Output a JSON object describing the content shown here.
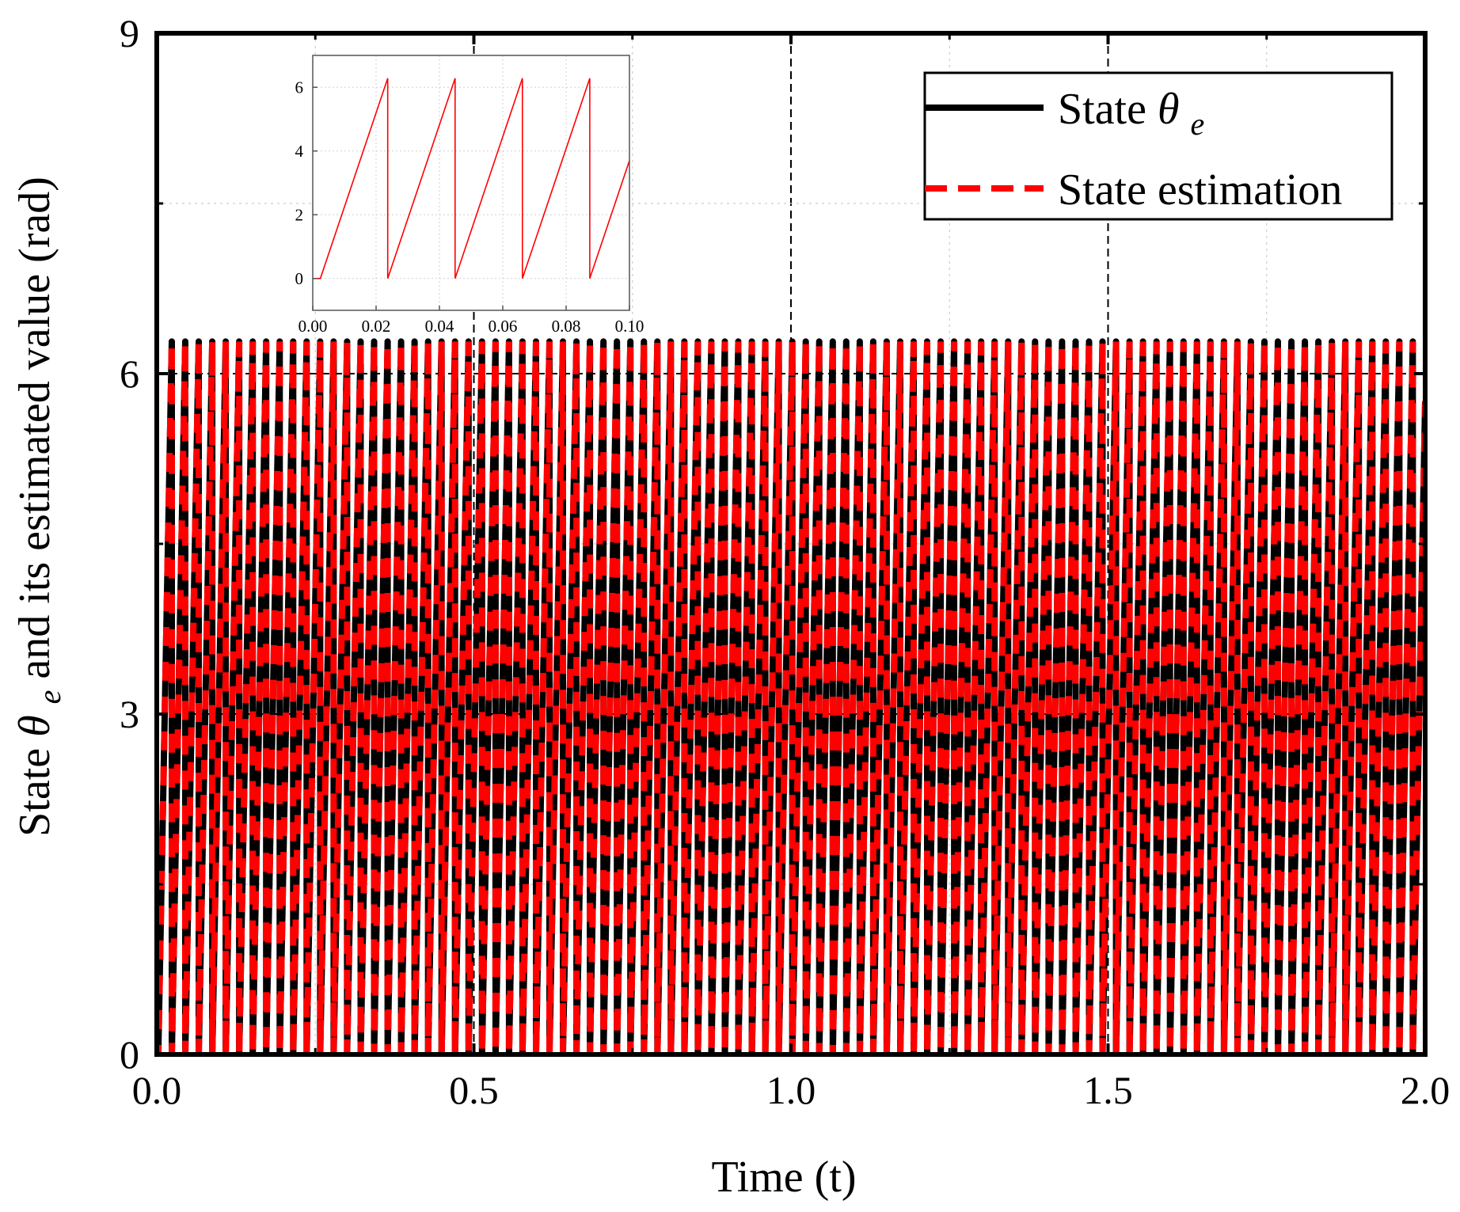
{
  "chart_data": [
    {
      "type": "line",
      "xlabel": "Time (t)",
      "ylabel_parts": {
        "prefix": "State",
        "symbol": "θ",
        "subscript": "e",
        "suffix": "and its estimated value   (rad)"
      },
      "xlim": [
        0,
        2
      ],
      "ylim": [
        0,
        9
      ],
      "x_ticks": [
        "0.0",
        "0.5",
        "1.0",
        "1.5",
        "2.0"
      ],
      "y_ticks": [
        "0",
        "3",
        "6",
        "9"
      ],
      "x_tick_values": [
        0,
        0.5,
        1.0,
        1.5,
        2.0
      ],
      "y_tick_values": [
        0,
        3,
        6,
        9
      ],
      "grid": true,
      "legend_position": "top-right",
      "legend": [
        {
          "label": "State",
          "symbol": "θ",
          "subscript": "e",
          "style": "solid",
          "color": "#000000"
        },
        {
          "label": "State estimation",
          "style": "dashed",
          "color": "#ff0000"
        }
      ],
      "series": [
        {
          "name": "State θe",
          "style": "solid",
          "color": "#000000",
          "period": 0.02127,
          "min": 0,
          "max": 6.2832,
          "t_start": 0.0024,
          "t_end": 2.0
        },
        {
          "name": "State estimation",
          "style": "dashed",
          "color": "#ff0000",
          "period": 0.02127,
          "min": 0,
          "max": 6.2832,
          "t_start": 0.0024,
          "t_end": 2.0
        }
      ]
    },
    {
      "type": "line",
      "role": "inset",
      "legend_position": "top-left",
      "xlim": [
        0,
        0.1
      ],
      "ylim": [
        -1,
        7
      ],
      "x_ticks": [
        "0.00",
        "0.02",
        "0.04",
        "0.06",
        "0.08",
        "0.10"
      ],
      "y_ticks": [
        "0",
        "2",
        "4",
        "6"
      ],
      "x_tick_values": [
        0,
        0.02,
        0.04,
        0.06,
        0.08,
        0.1
      ],
      "y_tick_values": [
        0,
        2,
        4,
        6
      ],
      "series": [
        {
          "name": "State estimation (zoom)",
          "color": "#ff0000",
          "period": 0.02127,
          "min": 0,
          "max": 6.2832,
          "t_start": 0.0024,
          "t_end": 0.1
        }
      ]
    }
  ]
}
